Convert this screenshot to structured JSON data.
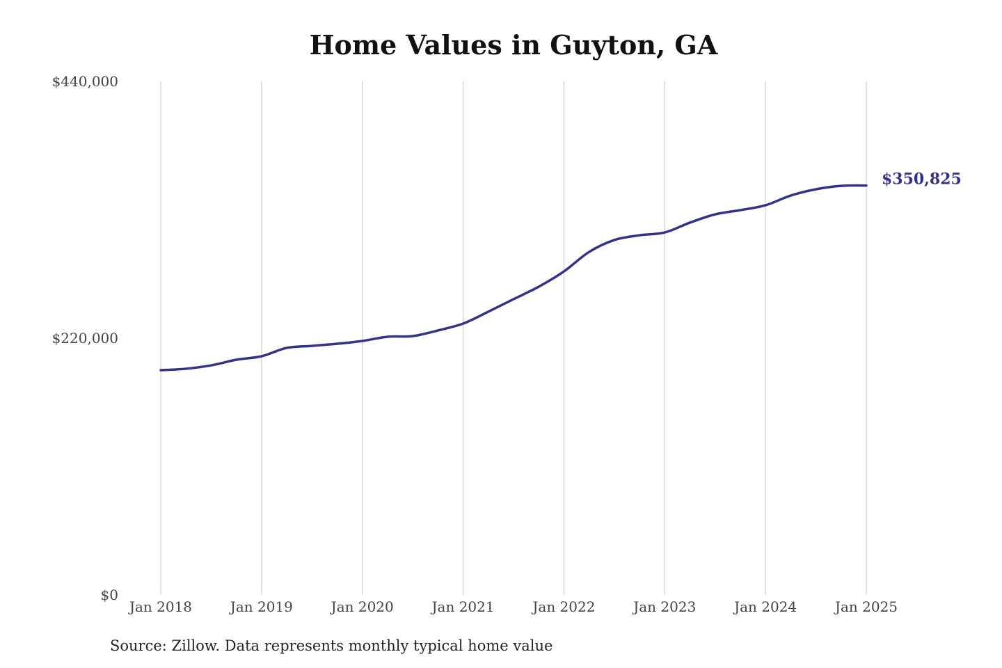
{
  "chart_data": {
    "type": "line",
    "title": "Home Values in Guyton, GA",
    "source": "Source: Zillow. Data represents monthly typical home value",
    "xlabel": "",
    "ylabel": "",
    "ylim": [
      0,
      440000
    ],
    "y_ticks": [
      0,
      220000,
      440000
    ],
    "y_tick_labels": [
      "$0",
      "$220,000",
      "$440,000"
    ],
    "x_ticks": [
      2018,
      2019,
      2020,
      2021,
      2022,
      2023,
      2024,
      2025
    ],
    "x_tick_labels": [
      "Jan 2018",
      "Jan 2019",
      "Jan 2020",
      "Jan 2021",
      "Jan 2022",
      "Jan 2023",
      "Jan 2024",
      "Jan 2025"
    ],
    "grid": "vertical",
    "line_color": "#34318a",
    "end_label": "$350,825",
    "series": [
      {
        "x": [
          "2018-01",
          "2018-04",
          "2018-07",
          "2018-10",
          "2019-01",
          "2019-04",
          "2019-07",
          "2019-10",
          "2020-01",
          "2020-04",
          "2020-07",
          "2020-10",
          "2021-01",
          "2021-04",
          "2021-07",
          "2021-10",
          "2022-01",
          "2022-04",
          "2022-07",
          "2022-10",
          "2023-01",
          "2023-04",
          "2023-07",
          "2023-10",
          "2024-01",
          "2024-04",
          "2024-07",
          "2024-10",
          "2025-01"
        ],
        "values": [
          192600,
          193800,
          196700,
          201500,
          204500,
          211700,
          213400,
          215200,
          217600,
          221200,
          221800,
          226600,
          232500,
          242700,
          253400,
          264100,
          277200,
          293900,
          304100,
          308200,
          310600,
          319000,
          326100,
          329700,
          333900,
          342200,
          347600,
          350500,
          350825
        ]
      }
    ]
  }
}
